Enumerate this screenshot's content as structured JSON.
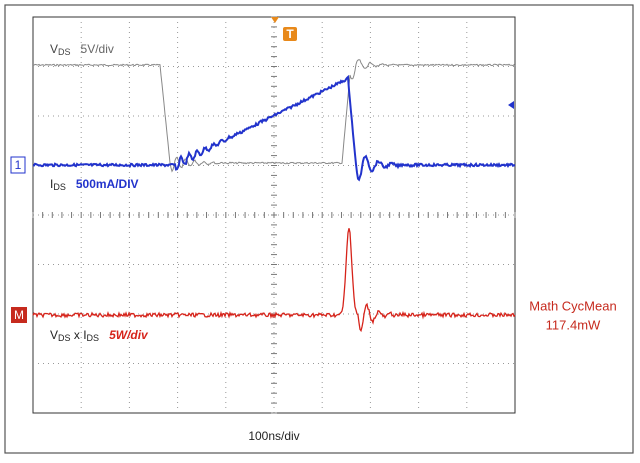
{
  "channel_labels": [
    {
      "parts": [
        {
          "text": "V"
        },
        {
          "text": "DS",
          "sub": true
        }
      ],
      "scale": "5V/div"
    },
    {
      "parts": [
        {
          "text": "I"
        },
        {
          "text": "DS",
          "sub": true
        }
      ],
      "scale": "500mA/DIV"
    },
    {
      "parts": [
        {
          "text": "V"
        },
        {
          "text": "DS",
          "sub": true
        },
        {
          "text": " x I"
        },
        {
          "text": "DS",
          "sub": true
        }
      ],
      "scale": "5W/div"
    }
  ],
  "markers": {
    "channel": "1",
    "math": "M",
    "trigger": "T"
  },
  "measurement": {
    "name": "Math CycMean",
    "value": "117.4mW"
  },
  "timebase": "100ns/div"
}
